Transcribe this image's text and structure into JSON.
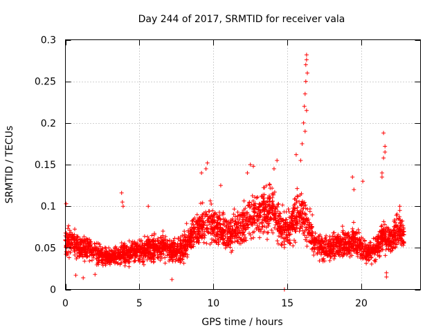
{
  "chart_data": {
    "type": "scatter",
    "title": "Day 244 of 2017, SRMTID for receiver vala",
    "xlabel": "GPS time / hours",
    "ylabel": "SRMTID / TECUs",
    "xlim": [
      0,
      24
    ],
    "ylim": [
      0,
      0.3
    ],
    "x_ticks": [
      0,
      5,
      10,
      15,
      20
    ],
    "y_ticks": [
      0,
      0.05,
      0.1,
      0.15,
      0.2,
      0.25,
      0.3
    ],
    "x_tick_labels": [
      "0",
      "5",
      "10",
      "15",
      "20"
    ],
    "y_tick_labels": [
      "0",
      "0.05",
      "0.1",
      "0.15",
      "0.2",
      "0.25",
      "0.3"
    ],
    "grid": true,
    "marker": "+",
    "series": [
      {
        "name": "SRMTID",
        "color": "#ff0000",
        "trend": [
          [
            0.0,
            0.06
          ],
          [
            0.5,
            0.055
          ],
          [
            1.0,
            0.05
          ],
          [
            1.5,
            0.05
          ],
          [
            2.0,
            0.045
          ],
          [
            2.5,
            0.04
          ],
          [
            3.0,
            0.038
          ],
          [
            3.5,
            0.04
          ],
          [
            4.0,
            0.042
          ],
          [
            4.5,
            0.044
          ],
          [
            5.0,
            0.046
          ],
          [
            5.5,
            0.048
          ],
          [
            6.0,
            0.05
          ],
          [
            6.5,
            0.05
          ],
          [
            7.0,
            0.048
          ],
          [
            7.5,
            0.046
          ],
          [
            8.0,
            0.05
          ],
          [
            8.5,
            0.065
          ],
          [
            9.0,
            0.075
          ],
          [
            9.5,
            0.08
          ],
          [
            10.0,
            0.078
          ],
          [
            10.5,
            0.07
          ],
          [
            11.0,
            0.065
          ],
          [
            11.5,
            0.07
          ],
          [
            12.0,
            0.078
          ],
          [
            12.5,
            0.085
          ],
          [
            13.0,
            0.09
          ],
          [
            13.5,
            0.095
          ],
          [
            14.0,
            0.1
          ],
          [
            14.5,
            0.075
          ],
          [
            15.0,
            0.07
          ],
          [
            15.5,
            0.085
          ],
          [
            16.0,
            0.09
          ],
          [
            16.5,
            0.07
          ],
          [
            17.0,
            0.055
          ],
          [
            17.5,
            0.05
          ],
          [
            18.0,
            0.05
          ],
          [
            18.5,
            0.055
          ],
          [
            19.0,
            0.055
          ],
          [
            19.5,
            0.06
          ],
          [
            20.0,
            0.05
          ],
          [
            20.5,
            0.045
          ],
          [
            21.0,
            0.05
          ],
          [
            21.5,
            0.065
          ],
          [
            22.0,
            0.06
          ],
          [
            22.5,
            0.07
          ],
          [
            22.9,
            0.065
          ]
        ],
        "outliers": [
          [
            0.05,
            0.103
          ],
          [
            3.8,
            0.116
          ],
          [
            3.85,
            0.105
          ],
          [
            3.9,
            0.1
          ],
          [
            5.6,
            0.1
          ],
          [
            9.5,
            0.145
          ],
          [
            9.6,
            0.152
          ],
          [
            9.2,
            0.14
          ],
          [
            10.5,
            0.125
          ],
          [
            12.3,
            0.14
          ],
          [
            12.5,
            0.15
          ],
          [
            12.7,
            0.148
          ],
          [
            14.3,
            0.155
          ],
          [
            14.1,
            0.145
          ],
          [
            14.8,
            0.0
          ],
          [
            15.6,
            0.162
          ],
          [
            15.9,
            0.155
          ],
          [
            16.0,
            0.175
          ],
          [
            16.1,
            0.2
          ],
          [
            16.15,
            0.22
          ],
          [
            16.2,
            0.235
          ],
          [
            16.25,
            0.25
          ],
          [
            16.25,
            0.27
          ],
          [
            16.3,
            0.282
          ],
          [
            16.3,
            0.276
          ],
          [
            16.35,
            0.26
          ],
          [
            16.2,
            0.19
          ],
          [
            16.3,
            0.215
          ],
          [
            19.4,
            0.135
          ],
          [
            19.5,
            0.12
          ],
          [
            20.1,
            0.13
          ],
          [
            21.5,
            0.188
          ],
          [
            21.6,
            0.172
          ],
          [
            21.6,
            0.165
          ],
          [
            21.5,
            0.158
          ],
          [
            21.4,
            0.14
          ],
          [
            21.4,
            0.135
          ],
          [
            22.6,
            0.1
          ],
          [
            22.6,
            0.095
          ],
          [
            7.2,
            0.012
          ],
          [
            1.2,
            0.014
          ],
          [
            2.0,
            0.018
          ],
          [
            21.7,
            0.015
          ],
          [
            21.7,
            0.02
          ],
          [
            0.7,
            0.017
          ]
        ],
        "n_background_points": 3100
      }
    ]
  }
}
